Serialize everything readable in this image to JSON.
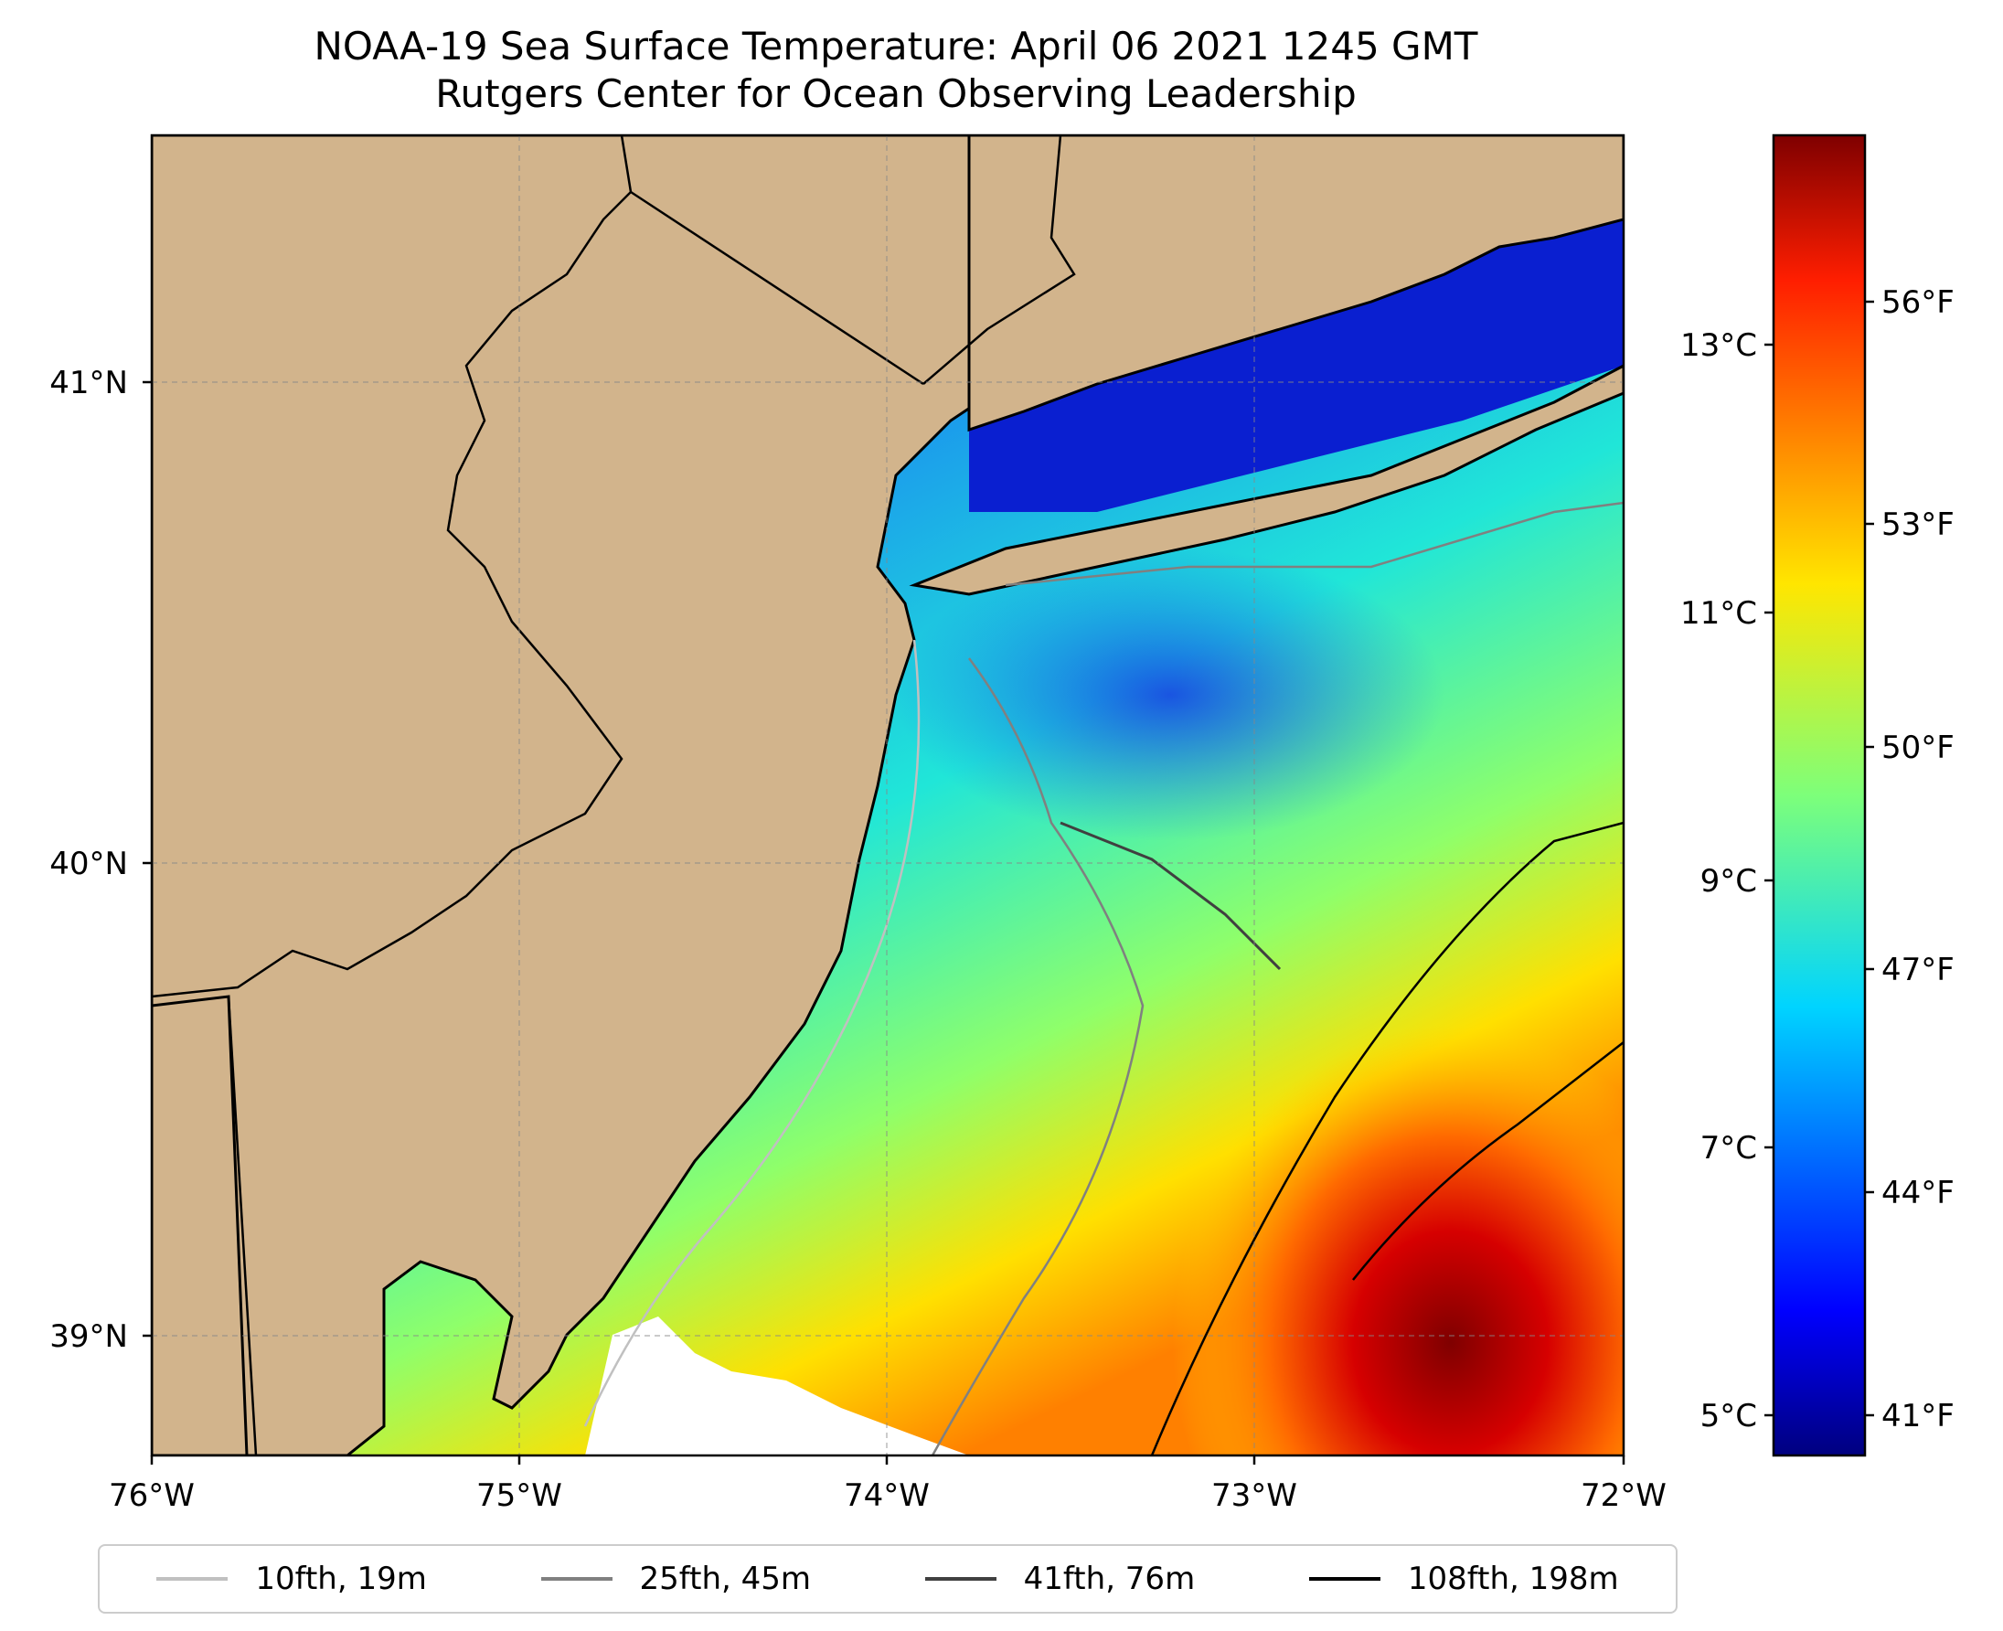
{
  "title_line1": "NOAA-19 Sea Surface Temperature: April 06 2021 1245 GMT",
  "title_line2": "Rutgers Center for Ocean Observing Leadership",
  "map": {
    "lon_ticks": [
      "76°W",
      "75°W",
      "74°W",
      "73°W",
      "72°W"
    ],
    "lat_ticks": [
      "41°N",
      "40°N",
      "39°N"
    ],
    "lon_range": [
      -76.0,
      -72.0
    ],
    "lat_range": [
      38.75,
      41.5
    ],
    "grid": true,
    "colors": {
      "land": "#d2b48c",
      "coast": "#000000",
      "nodata": "#ffffff"
    }
  },
  "colorbar": {
    "celsius_ticks": [
      "13°C",
      "11°C",
      "9°C",
      "7°C",
      "5°C"
    ],
    "fahrenheit_ticks": [
      "56°F",
      "53°F",
      "50°F",
      "47°F",
      "44°F",
      "41°F"
    ],
    "colormap": "jet",
    "range_f": [
      40.5,
      58.5
    ]
  },
  "legend": [
    {
      "label": "10fth, 19m",
      "color": "#c0c0c0"
    },
    {
      "label": "25fth, 45m",
      "color": "#808080"
    },
    {
      "label": "41fth, 76m",
      "color": "#404040"
    },
    {
      "label": "108fth, 198m",
      "color": "#000000"
    }
  ]
}
